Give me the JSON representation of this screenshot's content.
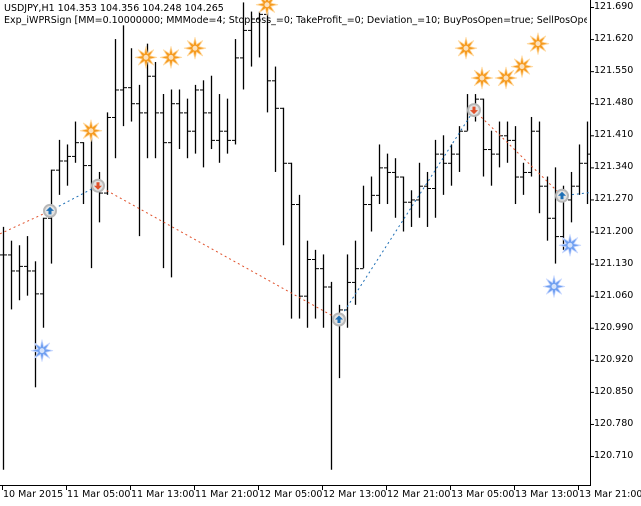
{
  "header": {
    "symbol_line": "USDJPY,H1  104.353 104.356 104.248 104.265",
    "expert_line": "Exp_iWPRSign [MM=0.10000000; MMMode=4; StopLoss_=0; TakeProfit_=0; Deviation_=10; BuyPosOpen=true; SellPosOpen=true; BuyP"
  },
  "colors": {
    "background": "#ffffff",
    "bars": "#000000",
    "sell_line": "#e0502a",
    "buy_line": "#1e6fb5",
    "sell_star": "#f59a1f",
    "buy_star": "#6f9ff0",
    "trade_circle": "#b8b8b8"
  },
  "chart_data": {
    "type": "ohlc_bar",
    "title": "USDJPY,H1",
    "ohlc_header": {
      "open": 104.353,
      "high": 104.356,
      "low": 104.248,
      "close": 104.265
    },
    "expert": "Exp_iWPRSign",
    "xlabel": "",
    "ylabel": "",
    "ylim": [
      120.675,
      121.7
    ],
    "yticks": [
      121.69,
      121.62,
      121.55,
      121.48,
      121.41,
      121.34,
      121.27,
      121.2,
      121.13,
      121.06,
      120.99,
      120.92,
      120.85,
      120.78,
      120.71
    ],
    "ytick_labels": [
      "121.690",
      "121.620",
      "121.550",
      "121.480",
      "121.410",
      "121.340",
      "121.270",
      "121.200",
      "121.130",
      "121.060",
      "120.990",
      "120.920",
      "120.850",
      "120.780",
      "120.710"
    ],
    "xtick_labels": [
      "10 Mar 2015",
      "11 Mar 05:00",
      "11 Mar 13:00",
      "11 Mar 21:00",
      "12 Mar 05:00",
      "12 Mar 13:00",
      "12 Mar 21:00",
      "13 Mar 05:00",
      "13 Mar 13:00",
      "13 Mar 21:00"
    ],
    "grid": false,
    "bars": [
      {
        "x": 3,
        "o": 121.15,
        "h": 121.21,
        "l": 120.68,
        "c": 121.15
      },
      {
        "x": 11,
        "o": 121.15,
        "h": 121.18,
        "l": 121.03,
        "c": 121.115
      },
      {
        "x": 19,
        "o": 121.115,
        "h": 121.17,
        "l": 121.05,
        "c": 121.125
      },
      {
        "x": 27,
        "o": 121.125,
        "h": 121.19,
        "l": 121.06,
        "c": 121.115
      },
      {
        "x": 35,
        "o": 121.115,
        "h": 121.135,
        "l": 120.86,
        "c": 121.065
      },
      {
        "x": 43,
        "o": 121.065,
        "h": 121.23,
        "l": 120.99,
        "c": 121.23
      },
      {
        "x": 51,
        "o": 121.23,
        "h": 121.33,
        "l": 121.13,
        "c": 121.335
      },
      {
        "x": 59,
        "o": 121.335,
        "h": 121.4,
        "l": 121.28,
        "c": 121.355
      },
      {
        "x": 67,
        "o": 121.355,
        "h": 121.39,
        "l": 121.3,
        "c": 121.365
      },
      {
        "x": 75,
        "o": 121.365,
        "h": 121.44,
        "l": 121.35,
        "c": 121.395
      },
      {
        "x": 83,
        "o": 121.395,
        "h": 121.37,
        "l": 121.26,
        "c": 121.345
      },
      {
        "x": 91,
        "o": 121.345,
        "h": 121.42,
        "l": 121.12,
        "c": 121.3
      },
      {
        "x": 99,
        "o": 121.3,
        "h": 121.33,
        "l": 121.22,
        "c": 121.285
      },
      {
        "x": 107,
        "o": 121.285,
        "h": 121.46,
        "l": 121.28,
        "c": 121.45
      },
      {
        "x": 115,
        "o": 121.45,
        "h": 121.62,
        "l": 121.36,
        "c": 121.51
      },
      {
        "x": 123,
        "o": 121.51,
        "h": 121.65,
        "l": 121.43,
        "c": 121.515
      },
      {
        "x": 131,
        "o": 121.515,
        "h": 121.6,
        "l": 121.44,
        "c": 121.48
      },
      {
        "x": 139,
        "o": 121.48,
        "h": 121.52,
        "l": 121.19,
        "c": 121.46
      },
      {
        "x": 147,
        "o": 121.46,
        "h": 121.61,
        "l": 121.36,
        "c": 121.54
      },
      {
        "x": 155,
        "o": 121.54,
        "h": 121.57,
        "l": 121.36,
        "c": 121.46
      },
      {
        "x": 163,
        "o": 121.46,
        "h": 121.5,
        "l": 121.12,
        "c": 121.395
      },
      {
        "x": 171,
        "o": 121.395,
        "h": 121.51,
        "l": 121.1,
        "c": 121.48
      },
      {
        "x": 179,
        "o": 121.48,
        "h": 121.51,
        "l": 121.38,
        "c": 121.46
      },
      {
        "x": 187,
        "o": 121.46,
        "h": 121.49,
        "l": 121.36,
        "c": 121.42
      },
      {
        "x": 195,
        "o": 121.42,
        "h": 121.52,
        "l": 121.37,
        "c": 121.51
      },
      {
        "x": 203,
        "o": 121.51,
        "h": 121.53,
        "l": 121.34,
        "c": 121.46
      },
      {
        "x": 211,
        "o": 121.46,
        "h": 121.54,
        "l": 121.38,
        "c": 121.4
      },
      {
        "x": 219,
        "o": 121.4,
        "h": 121.5,
        "l": 121.35,
        "c": 121.42
      },
      {
        "x": 227,
        "o": 121.42,
        "h": 121.49,
        "l": 121.37,
        "c": 121.4
      },
      {
        "x": 235,
        "o": 121.4,
        "h": 121.62,
        "l": 121.39,
        "c": 121.58
      },
      {
        "x": 243,
        "o": 121.58,
        "h": 121.7,
        "l": 121.51,
        "c": 121.64
      },
      {
        "x": 251,
        "o": 121.64,
        "h": 121.68,
        "l": 121.56,
        "c": 121.665
      },
      {
        "x": 259,
        "o": 121.665,
        "h": 121.68,
        "l": 121.58,
        "c": 121.675
      },
      {
        "x": 267,
        "o": 121.675,
        "h": 121.68,
        "l": 121.46,
        "c": 121.53
      },
      {
        "x": 275,
        "o": 121.53,
        "h": 121.56,
        "l": 121.33,
        "c": 121.47
      },
      {
        "x": 283,
        "o": 121.47,
        "h": 121.44,
        "l": 121.17,
        "c": 121.35
      },
      {
        "x": 291,
        "o": 121.35,
        "h": 121.31,
        "l": 121.01,
        "c": 121.26
      },
      {
        "x": 299,
        "o": 121.26,
        "h": 121.28,
        "l": 121.01,
        "c": 121.06
      },
      {
        "x": 307,
        "o": 121.06,
        "h": 121.18,
        "l": 120.99,
        "c": 121.14
      },
      {
        "x": 315,
        "o": 121.14,
        "h": 121.16,
        "l": 121.01,
        "c": 121.12
      },
      {
        "x": 323,
        "o": 121.12,
        "h": 121.15,
        "l": 120.99,
        "c": 121.08
      },
      {
        "x": 331,
        "o": 121.08,
        "h": 121.09,
        "l": 120.68,
        "c": 121.01
      },
      {
        "x": 339,
        "o": 121.01,
        "h": 121.04,
        "l": 120.88,
        "c": 121.03
      },
      {
        "x": 347,
        "o": 121.03,
        "h": 121.15,
        "l": 120.99,
        "c": 121.09
      },
      {
        "x": 355,
        "o": 121.09,
        "h": 121.18,
        "l": 121.04,
        "c": 121.12
      },
      {
        "x": 363,
        "o": 121.12,
        "h": 121.3,
        "l": 121.12,
        "c": 121.26
      },
      {
        "x": 371,
        "o": 121.26,
        "h": 121.32,
        "l": 121.2,
        "c": 121.28
      },
      {
        "x": 379,
        "o": 121.28,
        "h": 121.39,
        "l": 121.26,
        "c": 121.34
      },
      {
        "x": 387,
        "o": 121.34,
        "h": 121.37,
        "l": 121.26,
        "c": 121.33
      },
      {
        "x": 395,
        "o": 121.33,
        "h": 121.36,
        "l": 121.23,
        "c": 121.32
      },
      {
        "x": 403,
        "o": 121.32,
        "h": 121.31,
        "l": 121.2,
        "c": 121.265
      },
      {
        "x": 411,
        "o": 121.265,
        "h": 121.29,
        "l": 121.21,
        "c": 121.27
      },
      {
        "x": 419,
        "o": 121.27,
        "h": 121.35,
        "l": 121.23,
        "c": 121.3
      },
      {
        "x": 427,
        "o": 121.3,
        "h": 121.33,
        "l": 121.21,
        "c": 121.295
      },
      {
        "x": 435,
        "o": 121.295,
        "h": 121.4,
        "l": 121.23,
        "c": 121.37
      },
      {
        "x": 443,
        "o": 121.37,
        "h": 121.41,
        "l": 121.28,
        "c": 121.35
      },
      {
        "x": 451,
        "o": 121.35,
        "h": 121.39,
        "l": 121.3,
        "c": 121.37
      },
      {
        "x": 459,
        "o": 121.37,
        "h": 121.43,
        "l": 121.33,
        "c": 121.42
      },
      {
        "x": 467,
        "o": 121.42,
        "h": 121.5,
        "l": 121.44,
        "c": 121.47
      },
      {
        "x": 475,
        "o": 121.47,
        "h": 121.5,
        "l": 121.44,
        "c": 121.49
      },
      {
        "x": 483,
        "o": 121.49,
        "h": 121.41,
        "l": 121.32,
        "c": 121.38
      },
      {
        "x": 491,
        "o": 121.38,
        "h": 121.42,
        "l": 121.3,
        "c": 121.37
      },
      {
        "x": 499,
        "o": 121.37,
        "h": 121.44,
        "l": 121.34,
        "c": 121.41
      },
      {
        "x": 507,
        "o": 121.41,
        "h": 121.44,
        "l": 121.35,
        "c": 121.4
      },
      {
        "x": 515,
        "o": 121.4,
        "h": 121.43,
        "l": 121.26,
        "c": 121.32
      },
      {
        "x": 523,
        "o": 121.32,
        "h": 121.35,
        "l": 121.28,
        "c": 121.33
      },
      {
        "x": 531,
        "o": 121.33,
        "h": 121.45,
        "l": 121.32,
        "c": 121.42
      },
      {
        "x": 539,
        "o": 121.42,
        "h": 121.44,
        "l": 121.24,
        "c": 121.3
      },
      {
        "x": 547,
        "o": 121.3,
        "h": 121.32,
        "l": 121.18,
        "c": 121.23
      },
      {
        "x": 555,
        "o": 121.23,
        "h": 121.34,
        "l": 121.13,
        "c": 121.19
      },
      {
        "x": 563,
        "o": 121.19,
        "h": 121.3,
        "l": 121.16,
        "c": 121.27
      },
      {
        "x": 571,
        "o": 121.27,
        "h": 121.33,
        "l": 121.22,
        "c": 121.3
      },
      {
        "x": 579,
        "o": 121.3,
        "h": 121.39,
        "l": 121.28,
        "c": 121.35
      },
      {
        "x": 587,
        "o": 121.35,
        "h": 121.44,
        "l": 121.26,
        "c": 121.37
      }
    ],
    "trades": [
      {
        "type": "buy",
        "x": 50,
        "price": 121.245
      },
      {
        "type": "sell",
        "x": 98,
        "price": 121.3
      },
      {
        "type": "buy",
        "x": 339,
        "price": 121.008
      },
      {
        "type": "sell",
        "x": 474,
        "price": 121.465
      },
      {
        "type": "buy",
        "x": 562,
        "price": 121.278
      }
    ],
    "trade_lines": [
      {
        "type": "sell",
        "x1": 0,
        "p1": 121.195,
        "x2": 50,
        "p2": 121.245
      },
      {
        "type": "buy",
        "x1": 50,
        "p1": 121.245,
        "x2": 98,
        "p2": 121.3
      },
      {
        "type": "sell",
        "x1": 98,
        "p1": 121.3,
        "x2": 339,
        "p2": 121.008
      },
      {
        "type": "buy",
        "x1": 339,
        "p1": 121.008,
        "x2": 474,
        "p2": 121.465
      },
      {
        "type": "sell",
        "x1": 474,
        "p1": 121.465,
        "x2": 562,
        "p2": 121.278
      },
      {
        "type": "buy",
        "x1": 562,
        "p1": 121.278,
        "x2": 590,
        "p2": 121.285
      }
    ],
    "signals": [
      {
        "type": "sell",
        "x": 91,
        "price": 121.42
      },
      {
        "type": "sell",
        "x": 146,
        "price": 121.58
      },
      {
        "type": "sell",
        "x": 171,
        "price": 121.58
      },
      {
        "type": "sell",
        "x": 195,
        "price": 121.6
      },
      {
        "type": "sell",
        "x": 267,
        "price": 121.695
      },
      {
        "type": "sell",
        "x": 466,
        "price": 121.6
      },
      {
        "type": "sell",
        "x": 482,
        "price": 121.535
      },
      {
        "type": "sell",
        "x": 506,
        "price": 121.535
      },
      {
        "type": "sell",
        "x": 522,
        "price": 121.56
      },
      {
        "type": "sell",
        "x": 538,
        "price": 121.61
      },
      {
        "type": "buy",
        "x": 42,
        "price": 120.94
      },
      {
        "type": "buy",
        "x": 554,
        "price": 121.08
      },
      {
        "type": "buy",
        "x": 570,
        "price": 121.17
      }
    ]
  }
}
